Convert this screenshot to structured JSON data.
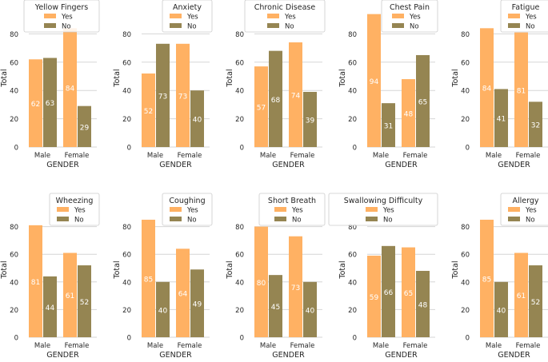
{
  "chart_data": [
    {
      "type": "bar",
      "title": "Yellow Fingers",
      "categories": [
        "Male",
        "Female"
      ],
      "xlabel": "GENDER",
      "ylabel": "Total",
      "series": [
        {
          "name": "Yes",
          "values": [
            62,
            84
          ]
        },
        {
          "name": "No",
          "values": [
            63,
            29
          ]
        }
      ]
    },
    {
      "type": "bar",
      "title": "Anxiety",
      "categories": [
        "Male",
        "Female"
      ],
      "xlabel": "GENDER",
      "ylabel": "Total",
      "series": [
        {
          "name": "Yes",
          "values": [
            52,
            73
          ]
        },
        {
          "name": "No",
          "values": [
            73,
            40
          ]
        }
      ]
    },
    {
      "type": "bar",
      "title": "Chronic Disease",
      "categories": [
        "Male",
        "Female"
      ],
      "xlabel": "GENDER",
      "ylabel": "Total",
      "series": [
        {
          "name": "Yes",
          "values": [
            57,
            74
          ]
        },
        {
          "name": "No",
          "values": [
            68,
            39
          ]
        }
      ]
    },
    {
      "type": "bar",
      "title": "Chest Pain",
      "categories": [
        "Male",
        "Female"
      ],
      "xlabel": "GENDER",
      "ylabel": "Total",
      "series": [
        {
          "name": "Yes",
          "values": [
            94,
            48
          ]
        },
        {
          "name": "No",
          "values": [
            31,
            65
          ]
        }
      ]
    },
    {
      "type": "bar",
      "title": "Fatigue",
      "categories": [
        "Male",
        "Female"
      ],
      "xlabel": "GENDER",
      "ylabel": "Total",
      "series": [
        {
          "name": "Yes",
          "values": [
            84,
            81
          ]
        },
        {
          "name": "No",
          "values": [
            41,
            32
          ]
        }
      ]
    },
    {
      "type": "bar",
      "title": "Wheezing",
      "categories": [
        "Male",
        "Female"
      ],
      "xlabel": "GENDER",
      "ylabel": "Total",
      "series": [
        {
          "name": "Yes",
          "values": [
            81,
            61
          ]
        },
        {
          "name": "No",
          "values": [
            44,
            52
          ]
        }
      ]
    },
    {
      "type": "bar",
      "title": "Coughing",
      "categories": [
        "Male",
        "Female"
      ],
      "xlabel": "GENDER",
      "ylabel": "Total",
      "series": [
        {
          "name": "Yes",
          "values": [
            85,
            64
          ]
        },
        {
          "name": "No",
          "values": [
            40,
            49
          ]
        }
      ]
    },
    {
      "type": "bar",
      "title": "Short Breath",
      "categories": [
        "Male",
        "Female"
      ],
      "xlabel": "GENDER",
      "ylabel": "Total",
      "series": [
        {
          "name": "Yes",
          "values": [
            80,
            73
          ]
        },
        {
          "name": "No",
          "values": [
            45,
            40
          ]
        }
      ]
    },
    {
      "type": "bar",
      "title": "Swallowing Difficulty",
      "categories": [
        "Male",
        "Female"
      ],
      "xlabel": "GENDER",
      "ylabel": "Total",
      "series": [
        {
          "name": "Yes",
          "values": [
            59,
            65
          ]
        },
        {
          "name": "No",
          "values": [
            66,
            48
          ]
        }
      ]
    },
    {
      "type": "bar",
      "title": "Allergy",
      "categories": [
        "Male",
        "Female"
      ],
      "xlabel": "GENDER",
      "ylabel": "Total",
      "series": [
        {
          "name": "Yes",
          "values": [
            85,
            61
          ]
        },
        {
          "name": "No",
          "values": [
            40,
            52
          ]
        }
      ]
    }
  ],
  "axis": {
    "ylim": [
      0,
      100
    ],
    "yticks": [
      0,
      20,
      40,
      60,
      80
    ],
    "grid": true
  },
  "colors": {
    "yes": "#FFB163",
    "no": "#958552",
    "grid": "#d6d6d6",
    "text": "#262626",
    "label_text": "#ffffff"
  }
}
